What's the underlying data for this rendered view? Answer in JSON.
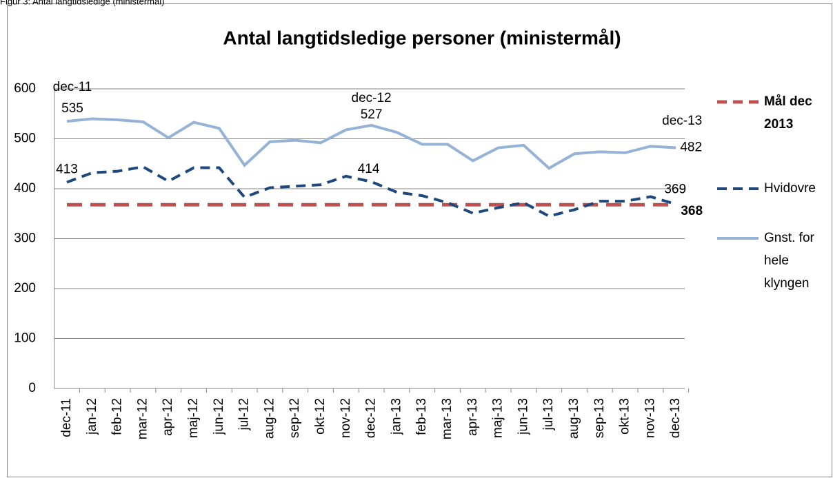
{
  "caption": "Figur 3: Antal langtidsledige (ministermål)",
  "chart_data": {
    "type": "line",
    "title": "Antal langtidsledige personer (ministermål)",
    "categories": [
      "dec-11",
      "jan-12",
      "feb-12",
      "mar-12",
      "apr-12",
      "maj-12",
      "jun-12",
      "jul-12",
      "aug-12",
      "sep-12",
      "okt-12",
      "nov-12",
      "dec-12",
      "jan-13",
      "feb-13",
      "mar-13",
      "apr-13",
      "maj-13",
      "jun-13",
      "jul-13",
      "aug-13",
      "sep-13",
      "okt-13",
      "nov-13",
      "dec-13"
    ],
    "series": [
      {
        "name": "Mål dec 2013",
        "color": "#c0504d",
        "dash": true,
        "values": [
          368,
          368,
          368,
          368,
          368,
          368,
          368,
          368,
          368,
          368,
          368,
          368,
          368,
          368,
          368,
          368,
          368,
          368,
          368,
          368,
          368,
          368,
          368,
          368,
          368
        ]
      },
      {
        "name": "Hvidovre",
        "color": "#1f497d",
        "dash": true,
        "values": [
          413,
          432,
          435,
          444,
          415,
          442,
          442,
          383,
          402,
          405,
          408,
          425,
          414,
          393,
          386,
          372,
          351,
          362,
          372,
          345,
          358,
          375,
          375,
          384,
          369
        ]
      },
      {
        "name": "Gnst. for hele klyngen",
        "color": "#95b3d7",
        "dash": false,
        "values": [
          535,
          540,
          538,
          534,
          502,
          533,
          521,
          447,
          494,
          497,
          492,
          518,
          527,
          513,
          489,
          489,
          456,
          482,
          487,
          441,
          470,
          474,
          472,
          485,
          482
        ]
      }
    ],
    "ylim": [
      0,
      600
    ],
    "yticks": [
      0,
      100,
      200,
      300,
      400,
      500,
      600
    ],
    "grid": true,
    "legend": "right"
  }
}
